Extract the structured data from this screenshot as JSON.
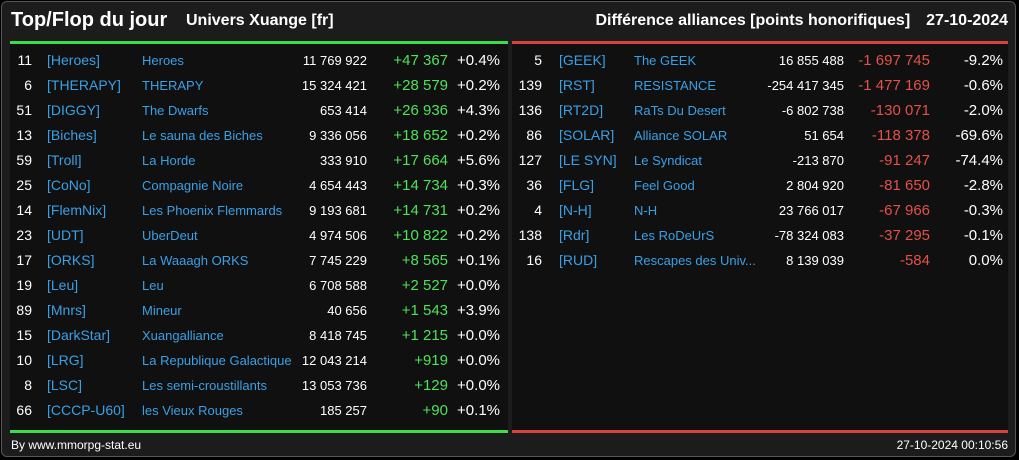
{
  "header": {
    "title": "Top/Flop du jour",
    "universe": "Univers Xuange [fr]",
    "stat_label": "Différence alliances [points honorifiques]",
    "date": "27-10-2024"
  },
  "colors": {
    "positive": "#4ee25a",
    "negative": "#e4504a",
    "link": "#3aa0e6"
  },
  "top": [
    {
      "rank": "11",
      "tag": "[Heroes]",
      "name": "Heroes",
      "score": "11 769 922",
      "diff": "+47 367",
      "pct": "+0.4%"
    },
    {
      "rank": "6",
      "tag": "[THERAPY]",
      "name": "THERAPY",
      "score": "15 324 421",
      "diff": "+28 579",
      "pct": "+0.2%"
    },
    {
      "rank": "51",
      "tag": "[DIGGY]",
      "name": "The Dwarfs",
      "score": "653 414",
      "diff": "+26 936",
      "pct": "+4.3%"
    },
    {
      "rank": "13",
      "tag": "[Biches]",
      "name": "Le sauna des Biches",
      "score": "9 336 056",
      "diff": "+18 652",
      "pct": "+0.2%"
    },
    {
      "rank": "59",
      "tag": "[Troll]",
      "name": "La Horde",
      "score": "333 910",
      "diff": "+17 664",
      "pct": "+5.6%"
    },
    {
      "rank": "25",
      "tag": "[CoNo]",
      "name": "Compagnie Noire",
      "score": "4 654 443",
      "diff": "+14 734",
      "pct": "+0.3%"
    },
    {
      "rank": "14",
      "tag": "[FlemNix]",
      "name": "Les Phoenix Flemmards",
      "score": "9 193 681",
      "diff": "+14 731",
      "pct": "+0.2%"
    },
    {
      "rank": "23",
      "tag": "[UDT]",
      "name": "UberDeut",
      "score": "4 974 506",
      "diff": "+10 822",
      "pct": "+0.2%"
    },
    {
      "rank": "17",
      "tag": "[ORKS]",
      "name": "La Waaagh ORKS",
      "score": "7 745 229",
      "diff": "+8 565",
      "pct": "+0.1%"
    },
    {
      "rank": "19",
      "tag": "[Leu]",
      "name": "Leu",
      "score": "6 708 588",
      "diff": "+2 527",
      "pct": "+0.0%"
    },
    {
      "rank": "89",
      "tag": "[Mnrs]",
      "name": "Mineur",
      "score": "40 656",
      "diff": "+1 543",
      "pct": "+3.9%"
    },
    {
      "rank": "15",
      "tag": "[DarkStar]",
      "name": "Xuangalliance",
      "score": "8 418 745",
      "diff": "+1 215",
      "pct": "+0.0%"
    },
    {
      "rank": "10",
      "tag": "[LRG]",
      "name": "La Republique Galactique",
      "score": "12 043 214",
      "diff": "+919",
      "pct": "+0.0%"
    },
    {
      "rank": "8",
      "tag": "[LSC]",
      "name": "Les semi-croustillants",
      "score": "13 053 736",
      "diff": "+129",
      "pct": "+0.0%"
    },
    {
      "rank": "66",
      "tag": "[CCCP-U60]",
      "name": "les Vieux Rouges",
      "score": "185 257",
      "diff": "+90",
      "pct": "+0.1%"
    }
  ],
  "flop": [
    {
      "rank": "5",
      "tag": "[GEEK]",
      "name": "The GEEK",
      "score": "16 855 488",
      "diff": "-1 697 745",
      "pct": "-9.2%"
    },
    {
      "rank": "139",
      "tag": "[RST]",
      "name": "RESISTANCE",
      "score": "-254 417 345",
      "diff": "-1 477 169",
      "pct": "-0.6%"
    },
    {
      "rank": "136",
      "tag": "[RT2D]",
      "name": "RaTs Du Desert",
      "score": "-6 802 738",
      "diff": "-130 071",
      "pct": "-2.0%"
    },
    {
      "rank": "86",
      "tag": "[SOLAR]",
      "name": "Alliance SOLAR",
      "score": "51 654",
      "diff": "-118 378",
      "pct": "-69.6%"
    },
    {
      "rank": "127",
      "tag": "[LE SYN]",
      "name": "Le Syndicat",
      "score": "-213 870",
      "diff": "-91 247",
      "pct": "-74.4%"
    },
    {
      "rank": "36",
      "tag": "[FLG]",
      "name": "Feel Good",
      "score": "2 804 920",
      "diff": "-81 650",
      "pct": "-2.8%"
    },
    {
      "rank": "4",
      "tag": "[N-H]",
      "name": "N-H",
      "score": "23 766 017",
      "diff": "-67 966",
      "pct": "-0.3%"
    },
    {
      "rank": "138",
      "tag": "[Rdr]",
      "name": "Les RoDeUrS",
      "score": "-78 324 083",
      "diff": "-37 295",
      "pct": "-0.1%"
    },
    {
      "rank": "16",
      "tag": "[RUD]",
      "name": "Rescapes des Univ...",
      "score": "8 139 039",
      "diff": "-584",
      "pct": "0.0%"
    }
  ],
  "footer": {
    "source": "By www.mmorpg-stat.eu",
    "timestamp": "27-10-2024 00:10:56"
  }
}
